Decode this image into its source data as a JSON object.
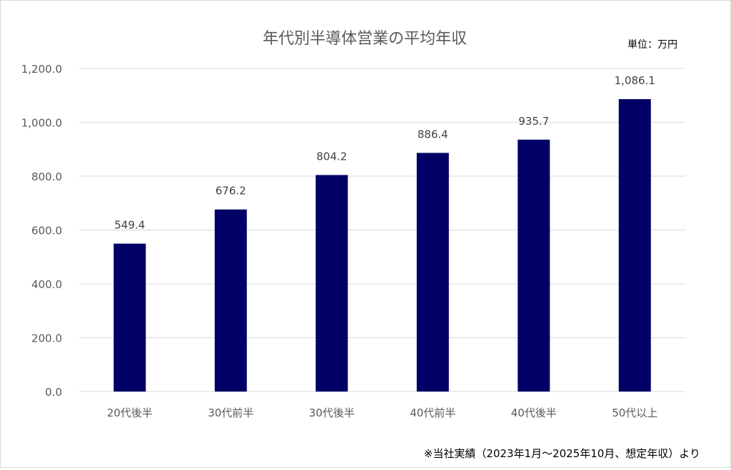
{
  "chart_data": {
    "type": "bar",
    "title": "年代別半導体営業の平均年収",
    "unit_label": "単位：万円",
    "footnote": "※当社実績（2023年1月～2025年10月、想定年収）より",
    "categories": [
      "20代後半",
      "30代前半",
      "30代後半",
      "40代前半",
      "40代後半",
      "50代以上"
    ],
    "values": [
      549.4,
      676.2,
      804.2,
      886.4,
      935.7,
      1086.1
    ],
    "data_labels": [
      "549.4",
      "676.2",
      "804.2",
      "886.4",
      "935.7",
      "1,086.1"
    ],
    "yticks": [
      "0.0",
      "200.0",
      "400.0",
      "600.0",
      "800.0",
      "1,000.0",
      "1,200.0"
    ],
    "ylim": [
      0,
      1200
    ],
    "grid": true,
    "legend": "none",
    "colors": {
      "bar": "#000066",
      "grid": "#d9d9d9",
      "text": "#595959"
    }
  }
}
